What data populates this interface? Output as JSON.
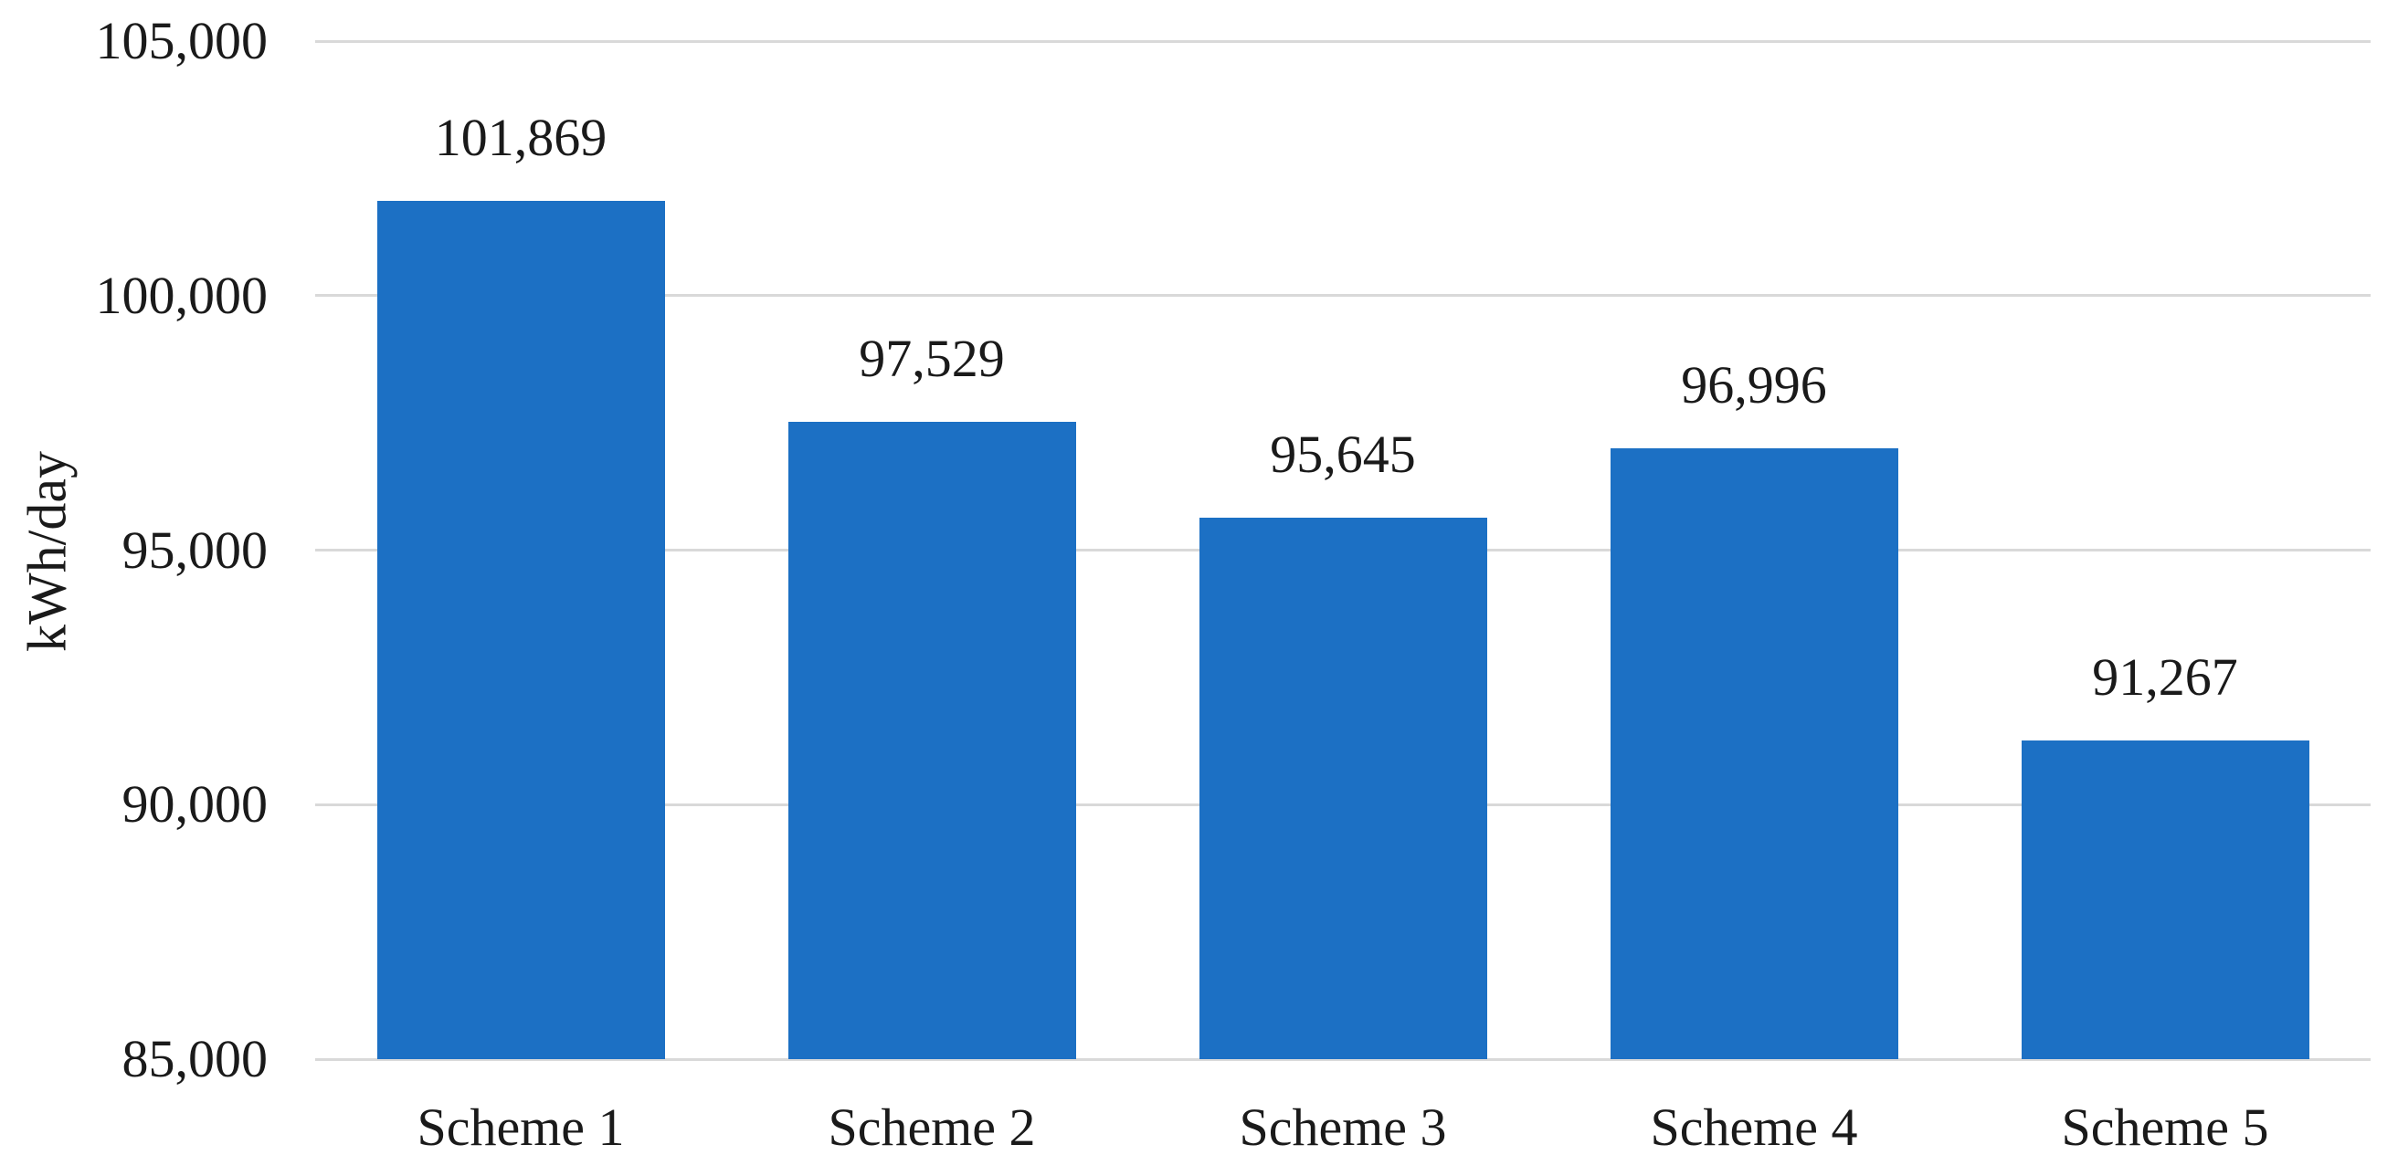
{
  "chart_data": {
    "type": "bar",
    "title": "",
    "categories": [
      "Scheme 1",
      "Scheme 2",
      "Scheme 3",
      "Scheme 4",
      "Scheme 5"
    ],
    "values": [
      101869,
      97529,
      95645,
      96996,
      91267
    ],
    "value_labels": [
      "101,869",
      "97,529",
      "95,645",
      "96,996",
      "91,267"
    ],
    "xlabel": "",
    "ylabel": "kWh/day",
    "ylim": [
      85000,
      105000
    ],
    "ytick_step": 5000,
    "yticks_top_to_bottom": [
      105000,
      100000,
      95000,
      90000,
      85000
    ],
    "ytick_labels_top_to_bottom": [
      "105,000",
      "100,000",
      "95,000",
      "90,000",
      "85,000"
    ],
    "grid": true,
    "legend": "none",
    "data_labels": "above bars",
    "colors": {
      "bar": "#1C70C4",
      "gridline": "#D9D9D9",
      "axis_line": "#D9D9D9",
      "text": "#1A1A1A",
      "background": "#FFFFFF"
    }
  }
}
